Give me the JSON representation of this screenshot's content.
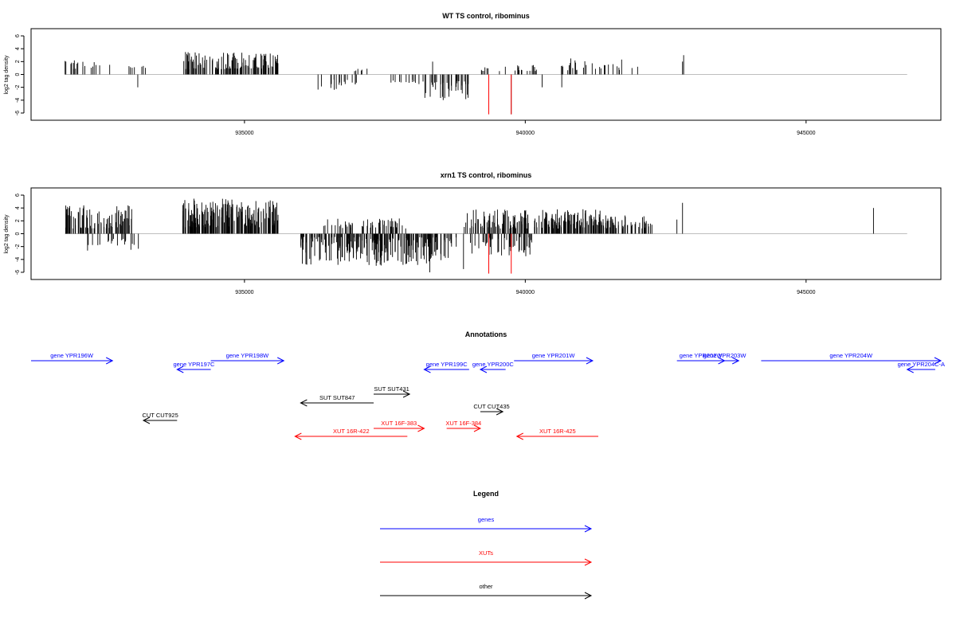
{
  "colors": {
    "genes": "#0000ff",
    "xuts": "#ff0000",
    "other": "#000000",
    "baseline": "#bebebe",
    "highlight": "#ff0000"
  },
  "x_axis": {
    "min": 931200,
    "max": 947400,
    "ticks": [
      935000,
      940000,
      945000
    ],
    "tick_labels": [
      "935000",
      "940000",
      "945000"
    ]
  },
  "y_axis": {
    "label": "log2 tag density",
    "min": -6.5,
    "max": 6.5,
    "ticks": [
      -6,
      -4,
      -2,
      0,
      2,
      4,
      6
    ],
    "tick_labels": [
      "-6",
      "-4",
      "-2",
      "0",
      "2",
      "4",
      "6"
    ]
  },
  "chart_data": [
    {
      "type": "bar",
      "title": "WT TS control, ribominus",
      "xlabel": "",
      "ylabel": "log2 tag density",
      "grid": false,
      "segments": [
        {
          "x": [
            931800,
            932500
          ],
          "density": 0.35,
          "amp": [
            0.8,
            2.6
          ],
          "sign": 1
        },
        {
          "x": [
            932900,
            933300
          ],
          "density": 0.25,
          "amp": [
            1.0,
            2.5
          ],
          "sign": 1
        },
        {
          "x": [
            933900,
            935600
          ],
          "density": 1.0,
          "amp": [
            0.8,
            3.5
          ],
          "sign": 1
        },
        {
          "x": [
            936300,
            937000
          ],
          "density": 0.35,
          "amp": [
            0.8,
            2.5
          ],
          "sign": -1
        },
        {
          "x": [
            936900,
            937200
          ],
          "density": 0.3,
          "amp": [
            0.5,
            1.0
          ],
          "sign": 1
        },
        {
          "x": [
            937600,
            938200
          ],
          "density": 0.3,
          "amp": [
            0.8,
            1.5
          ],
          "sign": -1
        },
        {
          "x": [
            938200,
            939000
          ],
          "density": 0.7,
          "amp": [
            1.0,
            4.0
          ],
          "sign": -1
        },
        {
          "x": [
            939200,
            940300
          ],
          "density": 0.3,
          "amp": [
            0.5,
            1.5
          ],
          "sign": 1
        },
        {
          "x": [
            940600,
            941900
          ],
          "density": 0.3,
          "amp": [
            0.6,
            2.5
          ],
          "sign": 1
        }
      ],
      "points": [
        [
          931820,
          2.0
        ],
        [
          932600,
          1.5
        ],
        [
          933100,
          -2.0
        ],
        [
          938350,
          2.0
        ],
        [
          939750,
          -6.2
        ],
        [
          940300,
          -2.0
        ],
        [
          940650,
          -2.0
        ],
        [
          941900,
          1.0
        ],
        [
          942000,
          1.2
        ],
        [
          942800,
          2.0
        ],
        [
          942820,
          3.0
        ]
      ],
      "highlights": [
        [
          939350,
          -6.2
        ],
        [
          939750,
          -6.2
        ]
      ]
    },
    {
      "type": "bar",
      "title": "xrn1 TS control, ribominus",
      "xlabel": "",
      "ylabel": "log2 tag density",
      "grid": false,
      "segments": [
        {
          "x": [
            931800,
            933000
          ],
          "density": 1.0,
          "amp": [
            0.8,
            4.5
          ],
          "sign": 1
        },
        {
          "x": [
            932200,
            933200
          ],
          "density": 0.3,
          "amp": [
            0.8,
            2.8
          ],
          "sign": -1
        },
        {
          "x": [
            933900,
            935600
          ],
          "density": 1.6,
          "amp": [
            1.0,
            5.5
          ],
          "sign": 1
        },
        {
          "x": [
            936000,
            938800
          ],
          "density": 1.2,
          "amp": [
            0.5,
            5.0
          ],
          "sign": -1
        },
        {
          "x": [
            936400,
            937900
          ],
          "density": 0.5,
          "amp": [
            0.8,
            2.5
          ],
          "sign": 1
        },
        {
          "x": [
            938900,
            941500
          ],
          "density": 1.0,
          "amp": [
            0.8,
            3.8
          ],
          "sign": 1
        },
        {
          "x": [
            939000,
            940200
          ],
          "density": 0.6,
          "amp": [
            0.5,
            3.5
          ],
          "sign": -1
        },
        {
          "x": [
            940300,
            942300
          ],
          "density": 0.7,
          "amp": [
            0.8,
            3.0
          ],
          "sign": 1
        }
      ],
      "points": [
        [
          938300,
          -6.0
        ],
        [
          938900,
          -5.5
        ],
        [
          942700,
          2.2
        ],
        [
          942800,
          4.8
        ],
        [
          946200,
          4.0
        ]
      ],
      "highlights": [
        [
          939350,
          -6.2
        ],
        [
          939750,
          -6.2
        ]
      ]
    }
  ],
  "annotations": {
    "title": "Annotations",
    "items": [
      {
        "label": "gene YPR196W",
        "group": "genes",
        "start": 931200,
        "end": 932650,
        "row": 0,
        "dir": "right"
      },
      {
        "label": "gene YPR197C",
        "group": "genes",
        "start": 933800,
        "end": 934400,
        "row": 1,
        "dir": "left"
      },
      {
        "label": "gene YPR198W",
        "group": "genes",
        "start": 934400,
        "end": 935700,
        "row": 0,
        "dir": "right"
      },
      {
        "label": "gene YPR199C",
        "group": "genes",
        "start": 938200,
        "end": 939000,
        "row": 1,
        "dir": "left"
      },
      {
        "label": "gene YPR200C",
        "group": "genes",
        "start": 939200,
        "end": 939650,
        "row": 1,
        "dir": "left"
      },
      {
        "label": "gene YPR201W",
        "group": "genes",
        "start": 939800,
        "end": 941200,
        "row": 0,
        "dir": "right"
      },
      {
        "label": "gene YPR202W",
        "group": "genes",
        "start": 942700,
        "end": 943550,
        "row": 0,
        "dir": "right"
      },
      {
        "label": "gene YPR203W",
        "group": "genes",
        "start": 943300,
        "end": 943800,
        "row": 0,
        "dir": "right"
      },
      {
        "label": "gene YPR204W",
        "group": "genes",
        "start": 944200,
        "end": 947400,
        "row": 0,
        "dir": "right"
      },
      {
        "label": "gene YPR204C-A",
        "group": "genes",
        "start": 946800,
        "end": 947300,
        "row": 1,
        "dir": "left"
      },
      {
        "label": "SUT SUT431",
        "group": "other",
        "start": 937300,
        "end": 937940,
        "row": 2,
        "dir": "right"
      },
      {
        "label": "SUT SUT847",
        "group": "other",
        "start": 936000,
        "end": 937300,
        "row": 3,
        "dir": "left"
      },
      {
        "label": "CUT CUT435",
        "group": "other",
        "start": 939200,
        "end": 939600,
        "row": 4,
        "dir": "right"
      },
      {
        "label": "CUT CUT925",
        "group": "other",
        "start": 933200,
        "end": 933800,
        "row": 5,
        "dir": "left"
      },
      {
        "label": "XUT 16F-383",
        "group": "xuts",
        "start": 937300,
        "end": 938200,
        "row": 6,
        "dir": "right"
      },
      {
        "label": "XUT 16F-384",
        "group": "xuts",
        "start": 938600,
        "end": 939200,
        "row": 6,
        "dir": "right"
      },
      {
        "label": "XUT 16R-422",
        "group": "xuts",
        "start": 935900,
        "end": 937900,
        "row": 7,
        "dir": "left"
      },
      {
        "label": "XUT 16R-425",
        "group": "xuts",
        "start": 939850,
        "end": 941300,
        "row": 7,
        "dir": "left"
      }
    ]
  },
  "legend": {
    "title": "Legend",
    "items": [
      {
        "label": "genes",
        "group": "genes"
      },
      {
        "label": "XUTs",
        "group": "xuts"
      },
      {
        "label": "other",
        "group": "other"
      }
    ]
  }
}
